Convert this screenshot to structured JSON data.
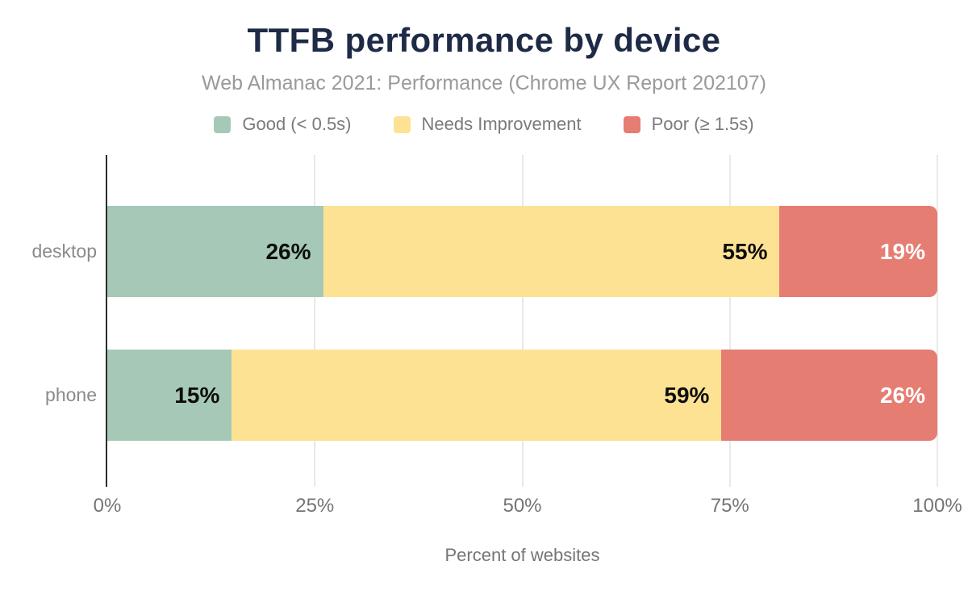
{
  "chart_data": {
    "type": "bar",
    "orientation": "horizontal",
    "stacked": true,
    "title": "TTFB performance by device",
    "subtitle": "Web Almanac 2021: Performance (Chrome UX Report 202107)",
    "xlabel": "Percent of websites",
    "categories": [
      "desktop",
      "phone"
    ],
    "series": [
      {
        "name": "Good (< 0.5s)",
        "color": "#a5c9b6",
        "label_color": "#0d0d0d",
        "values": [
          26,
          15
        ]
      },
      {
        "name": "Needs Improvement",
        "color": "#fde294",
        "label_color": "#0d0d0d",
        "values": [
          55,
          59
        ]
      },
      {
        "name": "Poor (≥ 1.5s)",
        "color": "#e57d73",
        "label_color": "#ffffff",
        "values": [
          19,
          26
        ]
      }
    ],
    "value_suffix": "%",
    "xlim": [
      0,
      100
    ],
    "xticks": [
      {
        "value": 0,
        "label": "0%"
      },
      {
        "value": 25,
        "label": "25%"
      },
      {
        "value": 50,
        "label": "50%"
      },
      {
        "value": 75,
        "label": "75%"
      },
      {
        "value": 100,
        "label": "100%"
      }
    ],
    "grid": true,
    "legend_position": "top"
  },
  "colors": {
    "background": "#ffffff",
    "title": "#1e2b47",
    "subtitle": "#9a9a9a",
    "legend_text": "#7a7a7a",
    "axis_label": "#8a8a8a",
    "tick_label": "#757575",
    "axis_line": "#2b2b2b",
    "gridline": "#e9e9e9"
  }
}
